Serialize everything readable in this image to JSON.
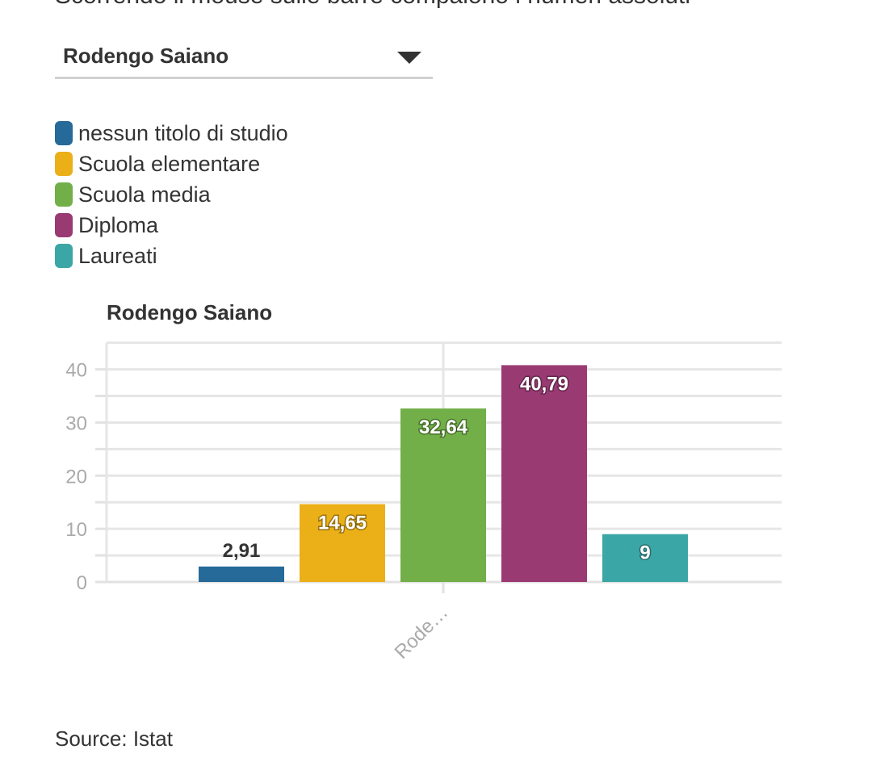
{
  "header": {
    "cut_text": "Scorrendo il mouse sulle barre compaiono i numeri assoluti"
  },
  "dropdown": {
    "selected": "Rodengo Saiano"
  },
  "legend": [
    {
      "label": "nessun titolo di studio",
      "color": "#256A99"
    },
    {
      "label": "Scuola elementare",
      "color": "#EBAF18"
    },
    {
      "label": "Scuola media",
      "color": "#72AF48"
    },
    {
      "label": "Diploma",
      "color": "#993A72"
    },
    {
      "label": "Laureati",
      "color": "#3BA6A6"
    }
  ],
  "chart_data": {
    "type": "bar",
    "title": "Rodengo Saiano",
    "categories": [
      "Rode…"
    ],
    "series": [
      {
        "name": "nessun titolo di studio",
        "values": [
          2.91
        ],
        "label": "2,91"
      },
      {
        "name": "Scuola elementare",
        "values": [
          14.65
        ],
        "label": "14,65"
      },
      {
        "name": "Scuola media",
        "values": [
          32.64
        ],
        "label": "32,64"
      },
      {
        "name": "Diploma",
        "values": [
          40.79
        ],
        "label": "40,79"
      },
      {
        "name": "Laureati",
        "values": [
          9
        ],
        "label": "9"
      }
    ],
    "ylim": [
      0,
      45
    ],
    "yticks": [
      "0",
      "10",
      "20",
      "30",
      "40"
    ],
    "grid": true,
    "legend_position": "top-left"
  },
  "footer": {
    "source": "Source: Istat"
  }
}
